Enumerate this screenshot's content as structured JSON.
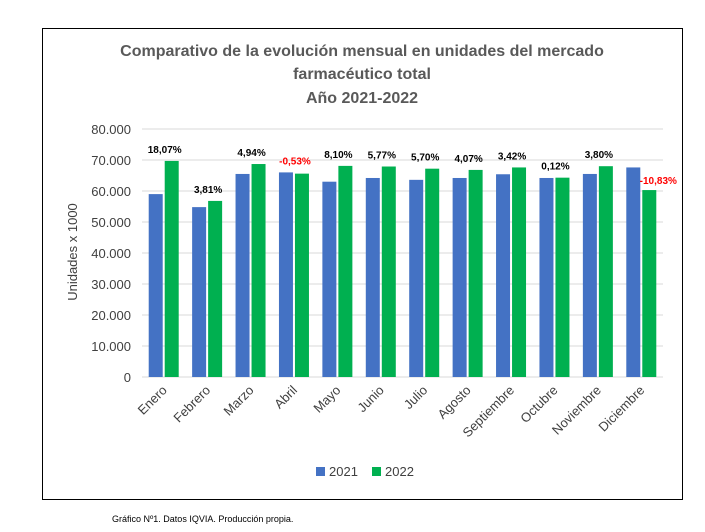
{
  "chart_data": {
    "type": "bar",
    "title_lines": [
      "Comparativo de la evolución mensual en unidades del mercado",
      "farmacéutico total",
      "Año 2021-2022"
    ],
    "ylabel": "Unidades x 1000",
    "xlabel": "",
    "ylim": [
      0,
      80000
    ],
    "yticks": [
      0,
      10000,
      20000,
      30000,
      40000,
      50000,
      60000,
      70000,
      80000
    ],
    "ytick_labels": [
      "0",
      "10.000",
      "20.000",
      "30.000",
      "40.000",
      "50.000",
      "60.000",
      "70.000",
      "80.000"
    ],
    "categories": [
      "Enero",
      "Febrero",
      "Marzo",
      "Abril",
      "Mayo",
      "Junio",
      "Julio",
      "Agosto",
      "Septiembre",
      "Octubre",
      "Noviembre",
      "Diciembre"
    ],
    "series": [
      {
        "name": "2021",
        "color": "#4472C4",
        "values": [
          59000,
          54800,
          65500,
          66000,
          63000,
          64200,
          63600,
          64200,
          65400,
          64200,
          65500,
          67600
        ]
      },
      {
        "name": "2022",
        "color": "#00B050",
        "values": [
          69700,
          56800,
          68700,
          65600,
          68100,
          67900,
          67200,
          66800,
          67600,
          64300,
          68000,
          60300
        ]
      }
    ],
    "annotations": [
      "18,07%",
      "3,81%",
      "4,94%",
      "-0,53%",
      "8,10%",
      "5,77%",
      "5,70%",
      "4,07%",
      "3,42%",
      "0,12%",
      "3,80%",
      "-10,83%"
    ],
    "annotation_colors": [
      "#000000",
      "#000000",
      "#000000",
      "#FF0000",
      "#000000",
      "#000000",
      "#000000",
      "#000000",
      "#000000",
      "#000000",
      "#000000",
      "#FF0000"
    ],
    "grid": true,
    "legend": "bottom"
  },
  "caption": "Gráfico Nº1. Datos IQVIA. Producción propia."
}
